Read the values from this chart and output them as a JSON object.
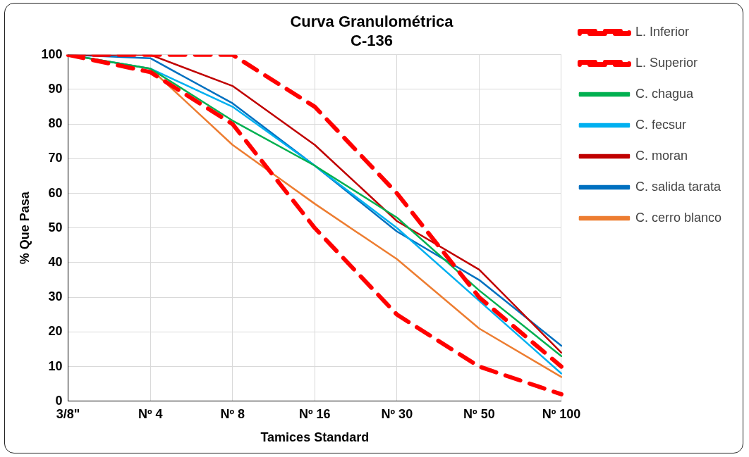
{
  "chart_data": {
    "type": "line",
    "title": "Curva Granulométrica",
    "subtitle": "C-136",
    "xlabel": "Tamices Standard",
    "ylabel": "% Que Pasa",
    "categories": [
      "3/8\"",
      "Nº 4",
      "Nº 8",
      "Nº 16",
      "Nº 30",
      "Nº 50",
      "Nº 100"
    ],
    "ylim": [
      0,
      100
    ],
    "yticks": [
      0,
      10,
      20,
      30,
      40,
      50,
      60,
      70,
      80,
      90,
      100
    ],
    "grid": true,
    "legend": "right",
    "marker": "none",
    "series": [
      {
        "name": "L. Inferior",
        "color": "#ff0000",
        "line_style": "dashed",
        "values": [
          100,
          95,
          80,
          50,
          25,
          10,
          2
        ]
      },
      {
        "name": "L. Superior",
        "color": "#ff0000",
        "line_style": "dashed",
        "values": [
          100,
          100,
          100,
          85,
          60,
          30,
          10
        ]
      },
      {
        "name": "C. chagua",
        "color": "#00b050",
        "line_style": "solid",
        "values": [
          100,
          96,
          81,
          68,
          53,
          32,
          13
        ]
      },
      {
        "name": "C. fecsur",
        "color": "#00b0f0",
        "line_style": "solid",
        "values": [
          100,
          96,
          85,
          68,
          50,
          29,
          8
        ]
      },
      {
        "name": "C. moran",
        "color": "#c00000",
        "line_style": "solid",
        "values": [
          100,
          100,
          91,
          74,
          52,
          38,
          14
        ]
      },
      {
        "name": "C. salida tarata",
        "color": "#0070c0",
        "line_style": "solid",
        "values": [
          100,
          99,
          86,
          68,
          49,
          35,
          16
        ]
      },
      {
        "name": "C. cerro blanco",
        "color": "#ed7d31",
        "line_style": "solid",
        "values": [
          100,
          96,
          74,
          57,
          41,
          21,
          7
        ]
      }
    ]
  }
}
